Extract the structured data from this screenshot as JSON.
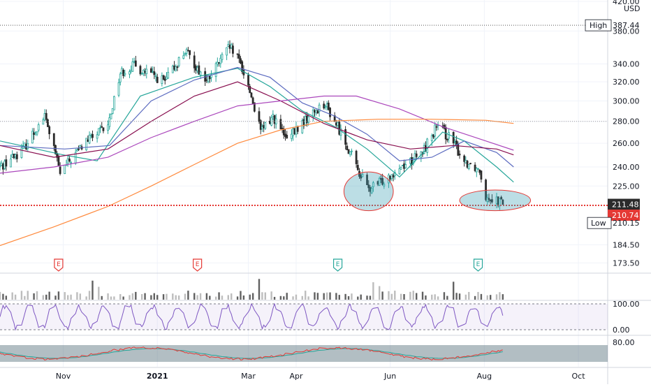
{
  "chart_data": {
    "type": "candlestick",
    "currency": "USD",
    "price_axis": {
      "ticks": [
        "420.00",
        "380.00",
        "340.00",
        "320.00",
        "300.00",
        "280.00",
        "260.00",
        "240.00",
        "225.00",
        "184.50",
        "173.50"
      ],
      "scale": "log",
      "range": [
        168,
        422
      ]
    },
    "labels": {
      "high": {
        "text": "High",
        "value": "387.44"
      },
      "low": {
        "text": "Low",
        "value": "210.15"
      },
      "last_price": "211.48",
      "prev_close": "210.74"
    },
    "time_axis": {
      "labels": [
        "Nov",
        "2021",
        "Mar",
        "Apr",
        "Jun",
        "Aug",
        "Oct"
      ],
      "months": [
        "2020-11",
        "2021-01",
        "2021-03",
        "2021-04",
        "2021-06",
        "2021-08",
        "2021-10"
      ],
      "start": "2020-09-21",
      "end": "2021-10-20"
    },
    "candles_approx": [
      {
        "date": "2020-09-21",
        "close": 240
      },
      {
        "date": "2020-10-06",
        "close": 255
      },
      {
        "date": "2020-10-20",
        "close": 285
      },
      {
        "date": "2020-10-30",
        "close": 235
      },
      {
        "date": "2020-11-16",
        "close": 262
      },
      {
        "date": "2020-11-30",
        "close": 275
      },
      {
        "date": "2020-12-08",
        "close": 330
      },
      {
        "date": "2020-12-16",
        "close": 338
      },
      {
        "date": "2021-01-06",
        "close": 320
      },
      {
        "date": "2021-01-19",
        "close": 355
      },
      {
        "date": "2021-02-02",
        "close": 320
      },
      {
        "date": "2021-02-17",
        "close": 360
      },
      {
        "date": "2021-02-24",
        "close": 340
      },
      {
        "date": "2021-03-02",
        "close": 310
      },
      {
        "date": "2021-03-09",
        "close": 270
      },
      {
        "date": "2021-03-17",
        "close": 285
      },
      {
        "date": "2021-03-26",
        "close": 262
      },
      {
        "date": "2021-04-05",
        "close": 278
      },
      {
        "date": "2021-04-19",
        "close": 298
      },
      {
        "date": "2021-04-30",
        "close": 270
      },
      {
        "date": "2021-05-10",
        "close": 240
      },
      {
        "date": "2021-05-18",
        "close": 222
      },
      {
        "date": "2021-05-26",
        "close": 228
      },
      {
        "date": "2021-06-07",
        "close": 240
      },
      {
        "date": "2021-06-21",
        "close": 250
      },
      {
        "date": "2021-07-01",
        "close": 275
      },
      {
        "date": "2021-07-09",
        "close": 266
      },
      {
        "date": "2021-07-19",
        "close": 245
      },
      {
        "date": "2021-07-29",
        "close": 238
      },
      {
        "date": "2021-08-02",
        "close": 218
      },
      {
        "date": "2021-08-09",
        "close": 215
      },
      {
        "date": "2021-08-13",
        "close": 211.48
      }
    ],
    "moving_averages": [
      {
        "color": "#26a69a",
        "points": [
          [
            "2020-09-21",
            262
          ],
          [
            "2020-11-01",
            250
          ],
          [
            "2020-11-23",
            245
          ],
          [
            "2020-12-21",
            305
          ],
          [
            "2021-01-25",
            325
          ],
          [
            "2021-02-22",
            335
          ],
          [
            "2021-03-15",
            315
          ],
          [
            "2021-04-05",
            290
          ],
          [
            "2021-04-26",
            275
          ],
          [
            "2021-05-17",
            255
          ],
          [
            "2021-06-07",
            232
          ],
          [
            "2021-06-21",
            250
          ],
          [
            "2021-07-05",
            270
          ],
          [
            "2021-07-19",
            262
          ],
          [
            "2021-08-09",
            240
          ],
          [
            "2021-08-20",
            228
          ]
        ]
      },
      {
        "color": "#5c6bc0",
        "points": [
          [
            "2020-09-21",
            258
          ],
          [
            "2020-11-02",
            255
          ],
          [
            "2020-12-01",
            258
          ],
          [
            "2020-12-28",
            300
          ],
          [
            "2021-01-25",
            322
          ],
          [
            "2021-02-22",
            336
          ],
          [
            "2021-03-15",
            325
          ],
          [
            "2021-04-05",
            298
          ],
          [
            "2021-04-26",
            285
          ],
          [
            "2021-05-17",
            268
          ],
          [
            "2021-06-07",
            245
          ],
          [
            "2021-06-28",
            248
          ],
          [
            "2021-07-19",
            262
          ],
          [
            "2021-08-09",
            252
          ],
          [
            "2021-08-20",
            240
          ]
        ]
      },
      {
        "color": "#880e4f",
        "points": [
          [
            "2020-09-21",
            258
          ],
          [
            "2020-10-26",
            248
          ],
          [
            "2020-11-30",
            255
          ],
          [
            "2020-12-28",
            280
          ],
          [
            "2021-01-25",
            305
          ],
          [
            "2021-02-22",
            320
          ],
          [
            "2021-03-22",
            300
          ],
          [
            "2021-04-19",
            278
          ],
          [
            "2021-05-17",
            263
          ],
          [
            "2021-06-14",
            255
          ],
          [
            "2021-07-12",
            258
          ],
          [
            "2021-08-09",
            255
          ],
          [
            "2021-08-20",
            250
          ]
        ]
      },
      {
        "color": "#ab47bc",
        "points": [
          [
            "2020-09-21",
            235
          ],
          [
            "2020-10-26",
            240
          ],
          [
            "2020-11-30",
            248
          ],
          [
            "2020-12-28",
            265
          ],
          [
            "2021-01-25",
            280
          ],
          [
            "2021-02-22",
            295
          ],
          [
            "2021-03-22",
            300
          ],
          [
            "2021-04-19",
            305
          ],
          [
            "2021-05-10",
            305
          ],
          [
            "2021-06-07",
            292
          ],
          [
            "2021-07-05",
            275
          ],
          [
            "2021-08-02",
            262
          ],
          [
            "2021-08-20",
            254
          ]
        ]
      },
      {
        "color": "#ff8a3d",
        "points": [
          [
            "2020-09-21",
            184
          ],
          [
            "2020-10-26",
            196
          ],
          [
            "2020-11-30",
            210
          ],
          [
            "2020-12-28",
            225
          ],
          [
            "2021-01-25",
            242
          ],
          [
            "2021-02-22",
            260
          ],
          [
            "2021-03-22",
            272
          ],
          [
            "2021-04-19",
            280
          ],
          [
            "2021-05-24",
            282
          ],
          [
            "2021-06-28",
            282
          ],
          [
            "2021-08-02",
            281
          ],
          [
            "2021-08-20",
            278
          ]
        ]
      }
    ],
    "earnings_markers": [
      {
        "date": "2020-10-29",
        "letter": "E",
        "color": "#e53935"
      },
      {
        "date": "2021-01-27",
        "letter": "E",
        "color": "#e53935"
      },
      {
        "date": "2021-04-28",
        "letter": "E",
        "color": "#26a69a"
      },
      {
        "date": "2021-07-28",
        "letter": "E",
        "color": "#26a69a"
      }
    ],
    "annotations": [
      {
        "shape": "ellipse",
        "center": [
          "2021-05-18",
          220
        ],
        "rx_days": 16,
        "price_range": [
          207,
          236
        ]
      },
      {
        "shape": "ellipse",
        "center": [
          "2021-08-08",
          214.5
        ],
        "rx_days": 23,
        "price_range": [
          207,
          222
        ]
      }
    ],
    "volume_panel": {
      "bars": 110
    },
    "rsi_panel": {
      "ticks": [
        "100.00",
        "0.00"
      ],
      "upper": 100,
      "lower": 0
    },
    "oscillator_panel": {
      "ticks": [
        "80.00"
      ]
    },
    "colors": {
      "up": "#26a69a",
      "down": "#2b2b2b",
      "support_line": "#e53935",
      "high_dotted": "#555555",
      "price_label_bg": "#2b2b2b",
      "prev_close_bg": "#e53935"
    }
  }
}
